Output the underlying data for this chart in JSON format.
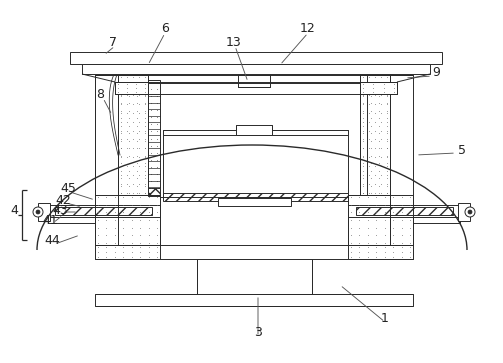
{
  "figure_width": 5.03,
  "figure_height": 3.63,
  "dpi": 100,
  "bg_color": "#ffffff",
  "line_color": "#2a2a2a",
  "line_width": 0.7
}
